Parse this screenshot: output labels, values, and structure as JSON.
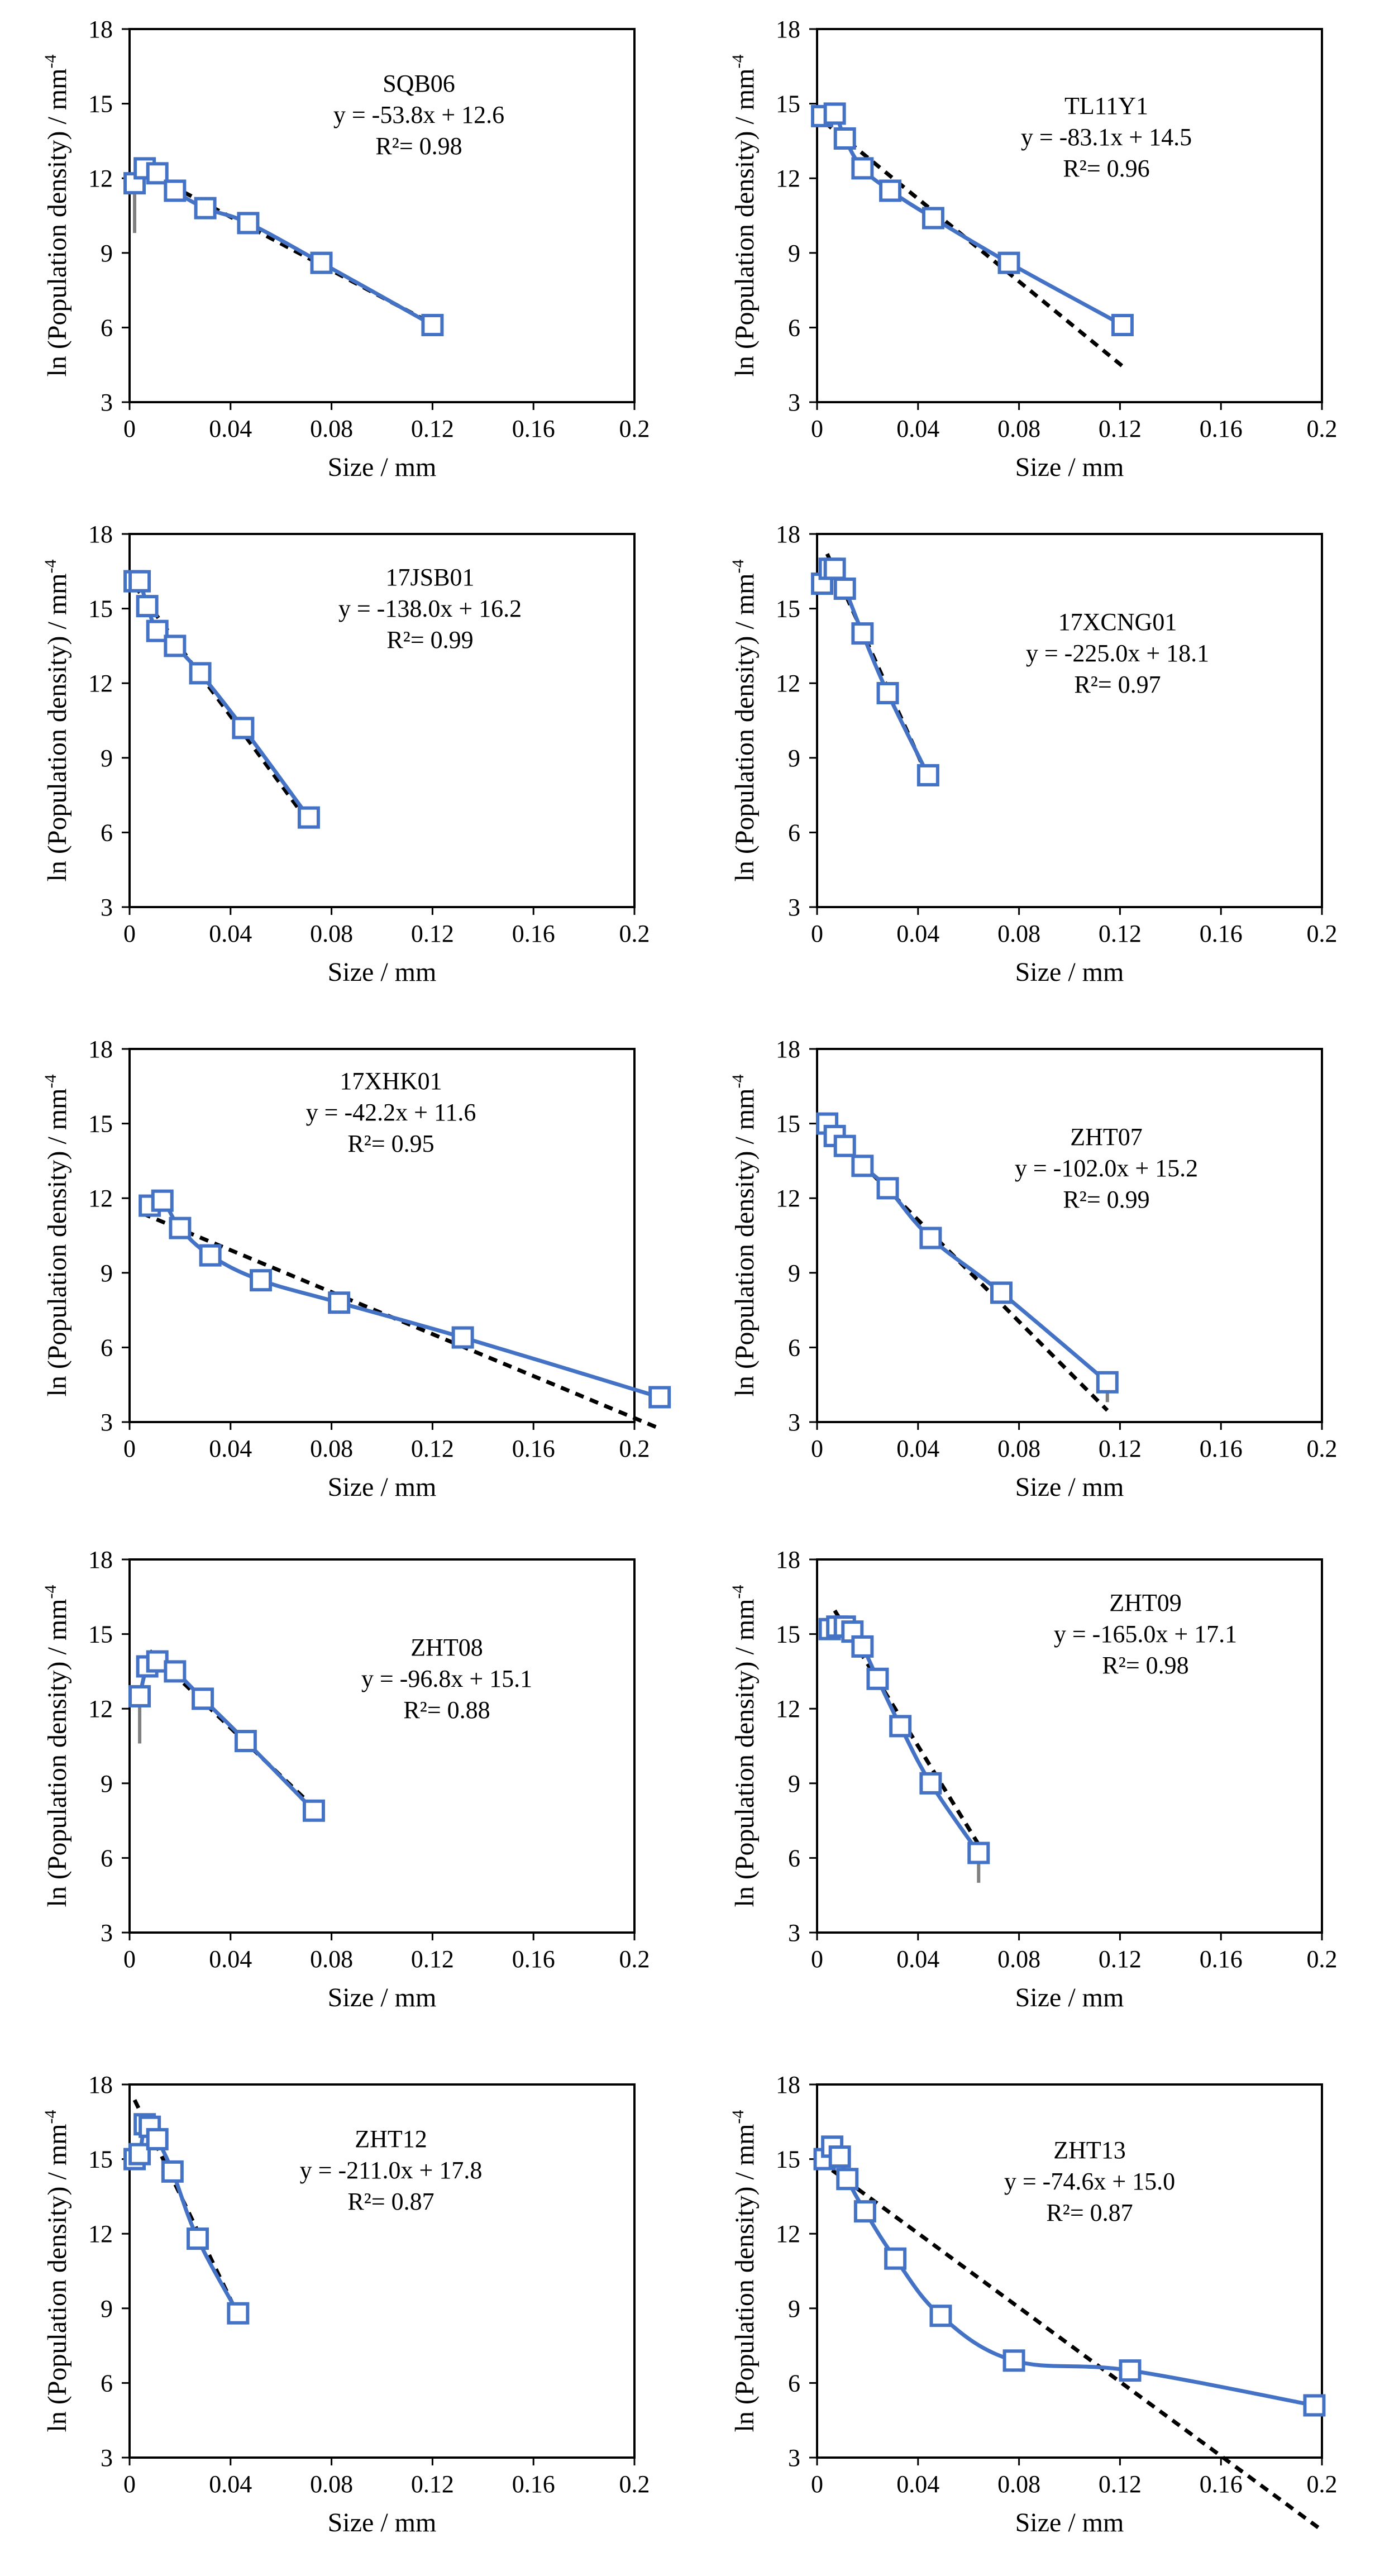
{
  "colors": {
    "data_line": "#4472C4",
    "fit_line": "#000000",
    "error_bar": "#808080",
    "frame": "#000000"
  },
  "chart_data": [
    {
      "type": "line",
      "title": "SQB06",
      "equation": "y = -53.8x + 12.6",
      "r2": "R²= 0.98",
      "xlabel": "Size / mm",
      "ylabel": "ln (Population density) / mm",
      "ylabel_sup": "-4",
      "xlim": [
        0,
        0.2
      ],
      "ylim": [
        3,
        18
      ],
      "x_ticks": [
        "0",
        "0.04",
        "0.08",
        "0.12",
        "0.16",
        "0.2"
      ],
      "y_ticks": [
        "3",
        "6",
        "9",
        "12",
        "15",
        "18"
      ],
      "series": [
        {
          "name": "data",
          "x": [
            0.002,
            0.006,
            0.011,
            0.018,
            0.03,
            0.047,
            0.076,
            0.12
          ],
          "y": [
            11.8,
            12.4,
            12.2,
            11.5,
            10.8,
            10.2,
            8.6,
            6.1
          ]
        },
        {
          "name": "linear fit",
          "slope": -53.8,
          "intercept": 12.6,
          "x_range": [
            0.005,
            0.12
          ]
        }
      ],
      "error_bars": [
        {
          "x": 0.002,
          "y_low": 9.8,
          "y_high": 11.8
        }
      ]
    },
    {
      "type": "line",
      "title": "TL11Y1",
      "equation": "y = -83.1x + 14.5",
      "r2": "R²= 0.96",
      "xlabel": "Size / mm",
      "ylabel": "ln (Population density) / mm",
      "ylabel_sup": "-4",
      "xlim": [
        0,
        0.2
      ],
      "ylim": [
        3,
        18
      ],
      "x_ticks": [
        "0",
        "0.04",
        "0.08",
        "0.12",
        "0.16",
        "0.2"
      ],
      "y_ticks": [
        "3",
        "6",
        "9",
        "12",
        "15",
        "18"
      ],
      "series": [
        {
          "name": "data",
          "x": [
            0.002,
            0.007,
            0.011,
            0.018,
            0.029,
            0.046,
            0.076,
            0.121
          ],
          "y": [
            14.5,
            14.6,
            13.6,
            12.4,
            11.5,
            10.4,
            8.6,
            6.1
          ]
        },
        {
          "name": "linear fit",
          "slope": -83.1,
          "intercept": 14.5,
          "x_range": [
            0.003,
            0.121
          ]
        }
      ],
      "error_bars": []
    },
    {
      "type": "line",
      "title": "17JSB01",
      "equation": "y = -138.0x + 16.2",
      "r2": "R²= 0.99",
      "xlabel": "Size / mm",
      "ylabel": "ln (Population density) / mm",
      "ylabel_sup": "-4",
      "xlim": [
        0,
        0.2
      ],
      "ylim": [
        3,
        18
      ],
      "x_ticks": [
        "0",
        "0.04",
        "0.08",
        "0.12",
        "0.16",
        "0.2"
      ],
      "y_ticks": [
        "3",
        "6",
        "9",
        "12",
        "15",
        "18"
      ],
      "series": [
        {
          "name": "data",
          "x": [
            0.002,
            0.004,
            0.007,
            0.011,
            0.018,
            0.028,
            0.045,
            0.071
          ],
          "y": [
            16.1,
            16.1,
            15.1,
            14.1,
            13.5,
            12.4,
            10.2,
            6.6
          ]
        },
        {
          "name": "linear fit",
          "slope": -138.0,
          "intercept": 16.2,
          "x_range": [
            0.002,
            0.071
          ]
        }
      ],
      "error_bars": []
    },
    {
      "type": "line",
      "title": "17XCNG01",
      "equation": "y = -225.0x + 18.1",
      "r2": "R²= 0.97",
      "xlabel": "Size / mm",
      "ylabel": "ln (Population density) / mm",
      "ylabel_sup": "-4",
      "xlim": [
        0,
        0.2
      ],
      "ylim": [
        3,
        18
      ],
      "x_ticks": [
        "0",
        "0.04",
        "0.08",
        "0.12",
        "0.16",
        "0.2"
      ],
      "y_ticks": [
        "3",
        "6",
        "9",
        "12",
        "15",
        "18"
      ],
      "series": [
        {
          "name": "data",
          "x": [
            0.002,
            0.005,
            0.007,
            0.011,
            0.018,
            0.028,
            0.044
          ],
          "y": [
            16.0,
            16.6,
            16.6,
            15.8,
            14.0,
            11.6,
            8.3
          ]
        },
        {
          "name": "linear fit",
          "slope": -225.0,
          "intercept": 18.1,
          "x_range": [
            0.004,
            0.044
          ]
        }
      ],
      "error_bars": []
    },
    {
      "type": "line",
      "title": "17XHK01",
      "equation": "y = -42.2x + 11.6",
      "r2": "R²= 0.95",
      "xlabel": "Size / mm",
      "ylabel": "ln (Population density) / mm",
      "ylabel_sup": "-4",
      "xlim": [
        0,
        0.2
      ],
      "ylim": [
        3,
        18
      ],
      "x_ticks": [
        "0",
        "0.04",
        "0.08",
        "0.12",
        "0.16",
        "0.2"
      ],
      "y_ticks": [
        "3",
        "6",
        "9",
        "12",
        "15",
        "18"
      ],
      "series": [
        {
          "name": "data",
          "x": [
            0.008,
            0.013,
            0.02,
            0.032,
            0.052,
            0.083,
            0.132,
            0.21
          ],
          "y": [
            11.7,
            11.9,
            10.8,
            9.7,
            8.7,
            7.8,
            6.4,
            4.0
          ]
        },
        {
          "name": "linear fit",
          "slope": -42.2,
          "intercept": 11.6,
          "x_range": [
            0.005,
            0.21
          ]
        }
      ],
      "error_bars": []
    },
    {
      "type": "line",
      "title": "ZHT07",
      "equation": "y = -102.0x + 15.2",
      "r2": "R²= 0.99",
      "xlabel": "Size / mm",
      "ylabel": "ln (Population density) / mm",
      "ylabel_sup": "-4",
      "xlim": [
        0,
        0.2
      ],
      "ylim": [
        3,
        18
      ],
      "x_ticks": [
        "0",
        "0.04",
        "0.08",
        "0.12",
        "0.16",
        "0.2"
      ],
      "y_ticks": [
        "3",
        "6",
        "9",
        "12",
        "15",
        "18"
      ],
      "series": [
        {
          "name": "data",
          "x": [
            0.004,
            0.007,
            0.011,
            0.018,
            0.028,
            0.045,
            0.073,
            0.115
          ],
          "y": [
            15.0,
            14.5,
            14.1,
            13.3,
            12.4,
            10.4,
            8.2,
            4.6
          ]
        },
        {
          "name": "linear fit",
          "slope": -102.0,
          "intercept": 15.2,
          "x_range": [
            0.004,
            0.115
          ]
        }
      ],
      "error_bars": [
        {
          "x": 0.115,
          "y_low": 3.8,
          "y_high": 4.6
        }
      ]
    },
    {
      "type": "line",
      "title": "ZHT08",
      "equation": "y = -96.8x + 15.1",
      "r2": "R²= 0.88",
      "xlabel": "Size / mm",
      "ylabel": "ln (Population density) / mm",
      "ylabel_sup": "-4",
      "xlim": [
        0,
        0.2
      ],
      "ylim": [
        3,
        18
      ],
      "x_ticks": [
        "0",
        "0.04",
        "0.08",
        "0.12",
        "0.16",
        "0.2"
      ],
      "y_ticks": [
        "3",
        "6",
        "9",
        "12",
        "15",
        "18"
      ],
      "series": [
        {
          "name": "data",
          "x": [
            0.004,
            0.007,
            0.011,
            0.018,
            0.029,
            0.046,
            0.073
          ],
          "y": [
            12.5,
            13.7,
            13.9,
            13.5,
            12.4,
            10.7,
            7.9
          ]
        },
        {
          "name": "linear fit",
          "slope": -96.8,
          "intercept": 15.1,
          "x_range": [
            0.008,
            0.073
          ]
        }
      ],
      "error_bars": [
        {
          "x": 0.004,
          "y_low": 10.6,
          "y_high": 12.5
        }
      ]
    },
    {
      "type": "line",
      "title": "ZHT09",
      "equation": "y = -165.0x + 17.1",
      "r2": "R²= 0.98",
      "xlabel": "Size / mm",
      "ylabel": "ln (Population density) / mm",
      "ylabel_sup": "-4",
      "xlim": [
        0,
        0.2
      ],
      "ylim": [
        3,
        18
      ],
      "x_ticks": [
        "0",
        "0.04",
        "0.08",
        "0.12",
        "0.16",
        "0.2"
      ],
      "y_ticks": [
        "3",
        "6",
        "9",
        "12",
        "15",
        "18"
      ],
      "series": [
        {
          "name": "data",
          "x": [
            0.005,
            0.008,
            0.011,
            0.014,
            0.018,
            0.024,
            0.033,
            0.045,
            0.064
          ],
          "y": [
            15.2,
            15.3,
            15.3,
            15.1,
            14.5,
            13.2,
            11.3,
            9.0,
            6.2
          ]
        },
        {
          "name": "linear fit",
          "slope": -165.0,
          "intercept": 17.1,
          "x_range": [
            0.007,
            0.064
          ]
        }
      ],
      "error_bars": [
        {
          "x": 0.064,
          "y_low": 5.0,
          "y_high": 6.2
        }
      ]
    },
    {
      "type": "line",
      "title": "ZHT12",
      "equation": "y = -211.0x + 17.8",
      "r2": "R²= 0.87",
      "xlabel": "Size / mm",
      "ylabel": "ln (Population density) / mm",
      "ylabel_sup": "-4",
      "xlim": [
        0,
        0.2
      ],
      "ylim": [
        3,
        18
      ],
      "x_ticks": [
        "0",
        "0.04",
        "0.08",
        "0.12",
        "0.16",
        "0.2"
      ],
      "y_ticks": [
        "3",
        "6",
        "9",
        "12",
        "15",
        "18"
      ],
      "series": [
        {
          "name": "data",
          "x": [
            0.002,
            0.004,
            0.006,
            0.008,
            0.011,
            0.017,
            0.027,
            0.043
          ],
          "y": [
            15.0,
            15.2,
            16.4,
            16.3,
            15.8,
            14.5,
            11.8,
            8.8
          ]
        },
        {
          "name": "linear fit",
          "slope": -211.0,
          "intercept": 17.8,
          "x_range": [
            0.002,
            0.043
          ]
        }
      ],
      "error_bars": []
    },
    {
      "type": "line",
      "title": "ZHT13",
      "equation": "y = -74.6x + 15.0",
      "r2": "R²= 0.87",
      "xlabel": "Size / mm",
      "ylabel": "ln (Population density) / mm",
      "ylabel_sup": "-4",
      "xlim": [
        0,
        0.2
      ],
      "ylim": [
        3,
        18
      ],
      "x_ticks": [
        "0",
        "0.04",
        "0.08",
        "0.12",
        "0.16",
        "0.2"
      ],
      "y_ticks": [
        "3",
        "6",
        "9",
        "12",
        "15",
        "18"
      ],
      "series": [
        {
          "name": "data",
          "x": [
            0.003,
            0.006,
            0.009,
            0.012,
            0.019,
            0.031,
            0.049,
            0.078,
            0.124,
            0.197
          ],
          "y": [
            15.0,
            15.5,
            15.1,
            14.2,
            12.9,
            11.0,
            8.7,
            6.9,
            6.5,
            5.1
          ]
        },
        {
          "name": "linear fit",
          "slope": -74.6,
          "intercept": 15.0,
          "x_range": [
            0.001,
            0.2
          ]
        }
      ],
      "error_bars": []
    }
  ]
}
